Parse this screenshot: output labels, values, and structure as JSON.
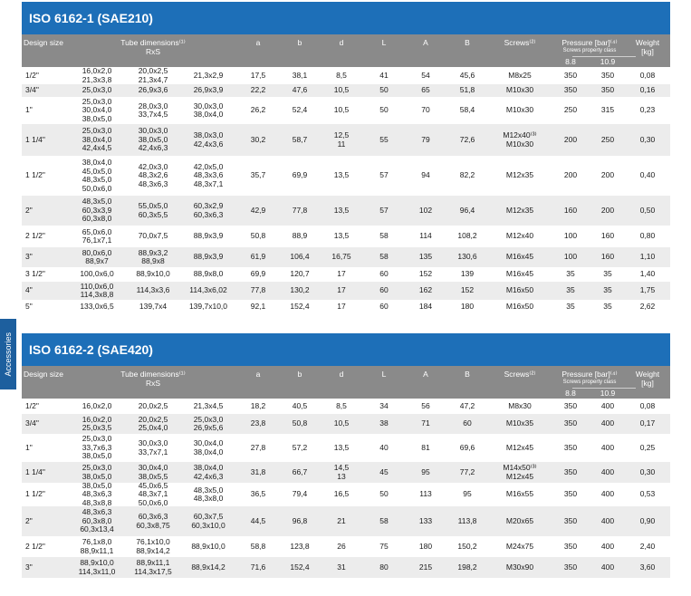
{
  "side_tab": "Accessories",
  "columns": {
    "design_size": "Design size",
    "tube_dimensions": "Tube dimensions⁽¹⁾",
    "rxs": "RxS",
    "a": "a",
    "b": "b",
    "d": "d",
    "L": "L",
    "A": "A",
    "B": "B",
    "screws": "Screws⁽²⁾",
    "pressure": "Pressure [bar]⁽⁴⁾",
    "screws_property_class": "Screws property class",
    "class_88": "8.8",
    "class_109": "10.9",
    "weight": "Weight",
    "weight_unit": "[kg]"
  },
  "sections": [
    {
      "title": "ISO 6162-1 (SAE210)",
      "rows": [
        {
          "size": "1/2\"",
          "t1": [
            "16,0x2,0",
            "21,3x3,8"
          ],
          "t2": [
            "20,0x2,5",
            "21,3x4,7"
          ],
          "t3": [
            "21,3x2,9"
          ],
          "a": "17,5",
          "b": "38,1",
          "d": [
            "8,5"
          ],
          "L": "41",
          "A": "54",
          "B": "45,6",
          "screws": [
            "M8x25"
          ],
          "p88": "350",
          "p109": "350",
          "w": "0,08"
        },
        {
          "size": "3/4\"",
          "t1": [
            "25,0x3,0"
          ],
          "t2": [
            "26,9x3,6"
          ],
          "t3": [
            "26,9x3,9"
          ],
          "a": "22,2",
          "b": "47,6",
          "d": [
            "10,5"
          ],
          "L": "50",
          "A": "65",
          "B": "51,8",
          "screws": [
            "M10x30"
          ],
          "p88": "350",
          "p109": "350",
          "w": "0,16"
        },
        {
          "size": "1\"",
          "t1": [
            "25,0x3,0",
            "30,0x4,0",
            "38,0x5,0"
          ],
          "t2": [
            "28,0x3,0",
            "33,7x4,5"
          ],
          "t3": [
            "30,0x3,0",
            "38,0x4,0"
          ],
          "a": "26,2",
          "b": "52,4",
          "d": [
            "10,5"
          ],
          "L": "50",
          "A": "70",
          "B": "58,4",
          "screws": [
            "M10x30"
          ],
          "p88": "250",
          "p109": "315",
          "w": "0,23"
        },
        {
          "size": "1 1/4\"",
          "t1": [
            "25,0x3,0",
            "38,0x4,0",
            "42,4x4,5"
          ],
          "t2": [
            "30,0x3,0",
            "38,0x5,0",
            "42,4x6,3"
          ],
          "t3": [
            "38,0x3,0",
            "42,4x3,6"
          ],
          "a": "30,2",
          "b": "58,7",
          "d": [
            "12,5",
            "11"
          ],
          "L": "55",
          "A": "79",
          "B": "72,6",
          "screws": [
            "M12x40⁽³⁾",
            "M10x30"
          ],
          "p88": "200",
          "p109": "250",
          "w": "0,30"
        },
        {
          "size": "1 1/2\"",
          "t1": [
            "38,0x4,0",
            "45,0x5,0",
            "48,3x5,0",
            "50,0x6,0"
          ],
          "t2": [
            "42,0x3,0",
            "48,3x2,6",
            "48,3x6,3"
          ],
          "t3": [
            "42,0x5,0",
            "48,3x3,6",
            "48,3x7,1"
          ],
          "a": "35,7",
          "b": "69,9",
          "d": [
            "13,5"
          ],
          "L": "57",
          "A": "94",
          "B": "82,2",
          "screws": [
            "M12x35"
          ],
          "p88": "200",
          "p109": "200",
          "w": "0,40"
        },
        {
          "size": "2\"",
          "t1": [
            "48,3x5,0",
            "60,3x3,9",
            "60,3x8,0"
          ],
          "t2": [
            "55,0x5,0",
            "60,3x5,5"
          ],
          "t3": [
            "60,3x2,9",
            "60,3x6,3"
          ],
          "a": "42,9",
          "b": "77,8",
          "d": [
            "13,5"
          ],
          "L": "57",
          "A": "102",
          "B": "96,4",
          "screws": [
            "M12x35"
          ],
          "p88": "160",
          "p109": "200",
          "w": "0,50"
        },
        {
          "size": "2 1/2\"",
          "t1": [
            "65,0x6,0",
            "76,1x7,1"
          ],
          "t2": [
            "70,0x7,5"
          ],
          "t3": [
            "88,9x3,9"
          ],
          "a": "50,8",
          "b": "88,9",
          "d": [
            "13,5"
          ],
          "L": "58",
          "A": "114",
          "B": "108,2",
          "screws": [
            "M12x40"
          ],
          "p88": "100",
          "p109": "160",
          "w": "0,80"
        },
        {
          "size": "3\"",
          "t1": [
            "80,0x6,0",
            "88,9x7"
          ],
          "t2": [
            "88,9x3,2",
            "88,9x8"
          ],
          "t3": [
            "88,9x3,9"
          ],
          "a": "61,9",
          "b": "106,4",
          "d": [
            "16,75"
          ],
          "L": "58",
          "A": "135",
          "B": "130,6",
          "screws": [
            "M16x45"
          ],
          "p88": "100",
          "p109": "160",
          "w": "1,10"
        },
        {
          "size": "3 1/2\"",
          "t1": [
            "100,0x6,0"
          ],
          "t2": [
            "88,9x10,0"
          ],
          "t3": [
            "88,9x8,0"
          ],
          "a": "69,9",
          "b": "120,7",
          "d": [
            "17"
          ],
          "L": "60",
          "A": "152",
          "B": "139",
          "screws": [
            "M16x45"
          ],
          "p88": "35",
          "p109": "35",
          "w": "1,40"
        },
        {
          "size": "4\"",
          "t1": [
            "110,0x6,0",
            "114,3x8,8"
          ],
          "t2": [
            "114,3x3,6"
          ],
          "t3": [
            "114,3x6,02"
          ],
          "a": "77,8",
          "b": "130,2",
          "d": [
            "17"
          ],
          "L": "60",
          "A": "162",
          "B": "152",
          "screws": [
            "M16x50"
          ],
          "p88": "35",
          "p109": "35",
          "w": "1,75"
        },
        {
          "size": "5\"",
          "t1": [
            "133,0x6,5"
          ],
          "t2": [
            "139,7x4"
          ],
          "t3": [
            "139,7x10,0"
          ],
          "a": "92,1",
          "b": "152,4",
          "d": [
            "17"
          ],
          "L": "60",
          "A": "184",
          "B": "180",
          "screws": [
            "M16x50"
          ],
          "p88": "35",
          "p109": "35",
          "w": "2,62"
        }
      ]
    },
    {
      "title": "ISO 6162-2 (SAE420)",
      "rows": [
        {
          "size": "1/2\"",
          "t1": [
            "16,0x2,0"
          ],
          "t2": [
            "20,0x2,5"
          ],
          "t3": [
            "21,3x4,5"
          ],
          "a": "18,2",
          "b": "40,5",
          "d": [
            "8,5"
          ],
          "L": "34",
          "A": "56",
          "B": "47,2",
          "screws": [
            "M8x30"
          ],
          "p88": "350",
          "p109": "400",
          "w": "0,08"
        },
        {
          "size": "3/4\"",
          "t1": [
            "16,0x2,0",
            "25,0x3,5"
          ],
          "t2": [
            "20,0x2,5",
            "25,0x4,0"
          ],
          "t3": [
            "25,0x3,0",
            "26,9x5,6"
          ],
          "a": "23,8",
          "b": "50,8",
          "d": [
            "10,5"
          ],
          "L": "38",
          "A": "71",
          "B": "60",
          "screws": [
            "M10x35"
          ],
          "p88": "350",
          "p109": "400",
          "w": "0,17"
        },
        {
          "size": "1\"",
          "t1": [
            "25,0x3,0",
            "33,7x6,3",
            "38,0x5,0"
          ],
          "t2": [
            "30,0x3,0",
            "33,7x7,1"
          ],
          "t3": [
            "30,0x4,0",
            "38,0x4,0"
          ],
          "a": "27,8",
          "b": "57,2",
          "d": [
            "13,5"
          ],
          "L": "40",
          "A": "81",
          "B": "69,6",
          "screws": [
            "M12x45"
          ],
          "p88": "350",
          "p109": "400",
          "w": "0,25"
        },
        {
          "size": "1 1/4\"",
          "t1": [
            "25,0x3,0",
            "38,0x5,0"
          ],
          "t2": [
            "30,0x4,0",
            "38,0x5,5"
          ],
          "t3": [
            "38,0x4,0",
            "42,4x6,3"
          ],
          "a": "31,8",
          "b": "66,7",
          "d": [
            "14,5",
            "13"
          ],
          "L": "45",
          "A": "95",
          "B": "77,2",
          "screws": [
            "M14x50⁽³⁾",
            "M12x45"
          ],
          "p88": "350",
          "p109": "400",
          "w": "0,30"
        },
        {
          "size": "1 1/2\"",
          "t1": [
            "38,0x5,0",
            "48,3x6,3",
            "48,3x8,8"
          ],
          "t2": [
            "45,0x6,5",
            "48,3x7,1",
            "50,0x6,0"
          ],
          "t3": [
            "48,3x5,0",
            "48,3x8,0"
          ],
          "a": "36,5",
          "b": "79,4",
          "d": [
            "16,5"
          ],
          "L": "50",
          "A": "113",
          "B": "95",
          "screws": [
            "M16x55"
          ],
          "p88": "350",
          "p109": "400",
          "w": "0,53"
        },
        {
          "size": "2\"",
          "t1": [
            "48,3x6,3",
            "60,3x8,0",
            "60,3x13,4"
          ],
          "t2": [
            "60,3x6,3",
            "60,3x8,75"
          ],
          "t3": [
            "60,3x7,5",
            "60,3x10,0"
          ],
          "a": "44,5",
          "b": "96,8",
          "d": [
            "21"
          ],
          "L": "58",
          "A": "133",
          "B": "113,8",
          "screws": [
            "M20x65"
          ],
          "p88": "350",
          "p109": "400",
          "w": "0,90"
        },
        {
          "size": "2 1/2\"",
          "t1": [
            "76,1x8,0",
            "88,9x11,1"
          ],
          "t2": [
            "76,1x10,0",
            "88,9x14,2"
          ],
          "t3": [
            "88,9x10,0"
          ],
          "a": "58,8",
          "b": "123,8",
          "d": [
            "26"
          ],
          "L": "75",
          "A": "180",
          "B": "150,2",
          "screws": [
            "M24x75"
          ],
          "p88": "350",
          "p109": "400",
          "w": "2,40"
        },
        {
          "size": "3\"",
          "t1": [
            "88,9x10,0",
            "114,3x11,0"
          ],
          "t2": [
            "88,9x11,1",
            "114,3x17,5"
          ],
          "t3": [
            "88,9x14,2"
          ],
          "a": "71,6",
          "b": "152,4",
          "d": [
            "31"
          ],
          "L": "80",
          "A": "215",
          "B": "198,2",
          "screws": [
            "M30x90"
          ],
          "p88": "350",
          "p109": "400",
          "w": "3,60"
        }
      ]
    }
  ]
}
